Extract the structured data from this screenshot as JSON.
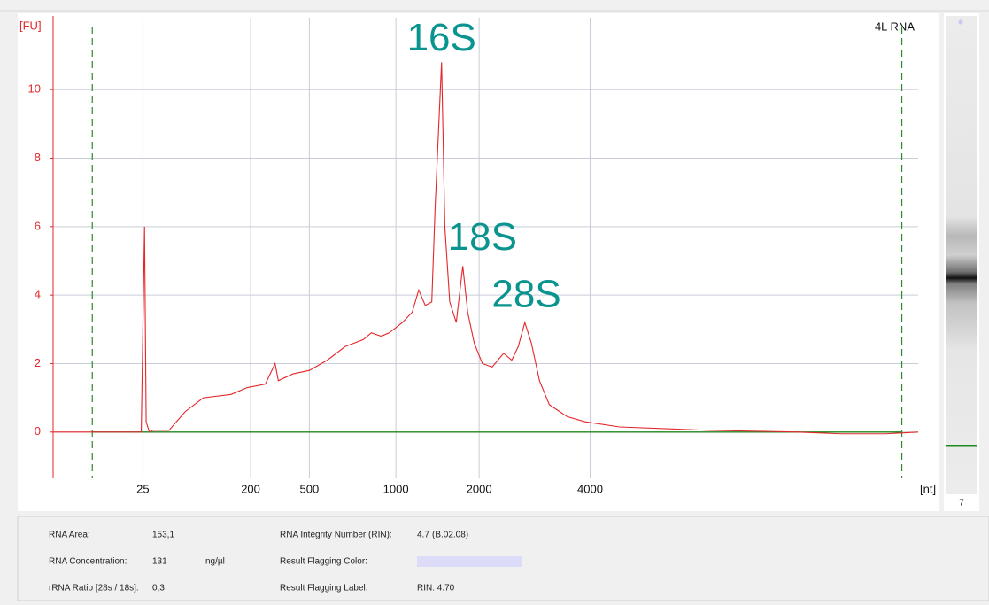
{
  "chart_data": {
    "type": "line",
    "title": "4L RNA",
    "y_label": "[FU]",
    "x_label": "[nt]",
    "color": "#e3262a",
    "x": [
      17.0,
      19.2,
      21.9,
      22.4,
      22.6,
      22.7,
      22.9,
      23.1,
      24.1,
      25.1,
      26.2,
      27.9,
      28.9,
      30.0,
      30.6,
      30.8,
      31.7,
      32.7,
      33.8,
      34.9,
      36.0,
      36.5,
      37.1,
      37.6,
      38.4,
      39.0,
      39.4,
      39.8,
      40.2,
      40.4,
      40.8,
      41.0,
      41.3,
      41.7,
      42.1,
      42.4,
      42.8,
      43.3,
      43.9,
      44.6,
      45.1,
      45.5,
      45.9,
      46.3,
      46.8,
      47.4,
      48.5,
      49.6,
      51.7,
      57.2,
      62.6,
      65.3,
      68.0,
      70.0
    ],
    "values": [
      0,
      0,
      0,
      0,
      6.0,
      0.3,
      0,
      0.05,
      0.05,
      0.6,
      1.0,
      1.1,
      1.3,
      1.4,
      2.0,
      1.5,
      1.7,
      1.8,
      2.1,
      2.5,
      2.7,
      2.9,
      2.8,
      2.9,
      3.2,
      3.5,
      4.15,
      3.7,
      3.8,
      6.5,
      10.8,
      6.0,
      3.8,
      3.2,
      4.85,
      3.5,
      2.6,
      2.0,
      1.9,
      2.3,
      2.1,
      2.5,
      3.2,
      2.6,
      1.5,
      0.8,
      0.45,
      0.3,
      0.15,
      0.05,
      0,
      -0.05,
      -0.05,
      0
    ],
    "xlim": [
      17,
      70
    ],
    "ylim": [
      -1.35,
      12.1
    ],
    "xticks": [
      {
        "value": 22.5,
        "label": "25"
      },
      {
        "value": 29.1,
        "label": "200"
      },
      {
        "value": 32.7,
        "label": "500"
      },
      {
        "value": 38.0,
        "label": "1000"
      },
      {
        "value": 43.1,
        "label": "2000"
      },
      {
        "value": 49.9,
        "label": "4000"
      }
    ],
    "yticks": [
      0,
      2,
      4,
      6,
      8,
      10
    ],
    "grid": true,
    "markers_x": [
      19.4,
      69.0
    ],
    "marker_color": "#2b8a2b",
    "baseline": 0,
    "baseline_color": "#1f8a1f",
    "annotation_color": "#0a948f",
    "annotations": [
      {
        "text": "16S",
        "x": 40.8,
        "y": 11.45
      },
      {
        "text": "18S",
        "x": 43.3,
        "y": 5.63
      },
      {
        "text": "28S",
        "x": 46.0,
        "y": 3.95
      }
    ]
  },
  "lane": {
    "label": "7"
  },
  "results": {
    "left": [
      {
        "label": "RNA Area:",
        "value": "153,1"
      },
      {
        "label": "RNA Concentration:",
        "value": "131",
        "unit": "ng/µl"
      },
      {
        "label": "rRNA Ratio [28s / 18s]:",
        "value": "0,3"
      }
    ],
    "right": [
      {
        "label": "RNA Integrity Number (RIN):",
        "value": "4.7",
        "note": "(B.02.08)"
      },
      {
        "label": "Result Flagging Color:",
        "swatch": "#dcdcf8"
      },
      {
        "label": "Result Flagging Label:",
        "value": "RIN: 4.70"
      }
    ]
  }
}
